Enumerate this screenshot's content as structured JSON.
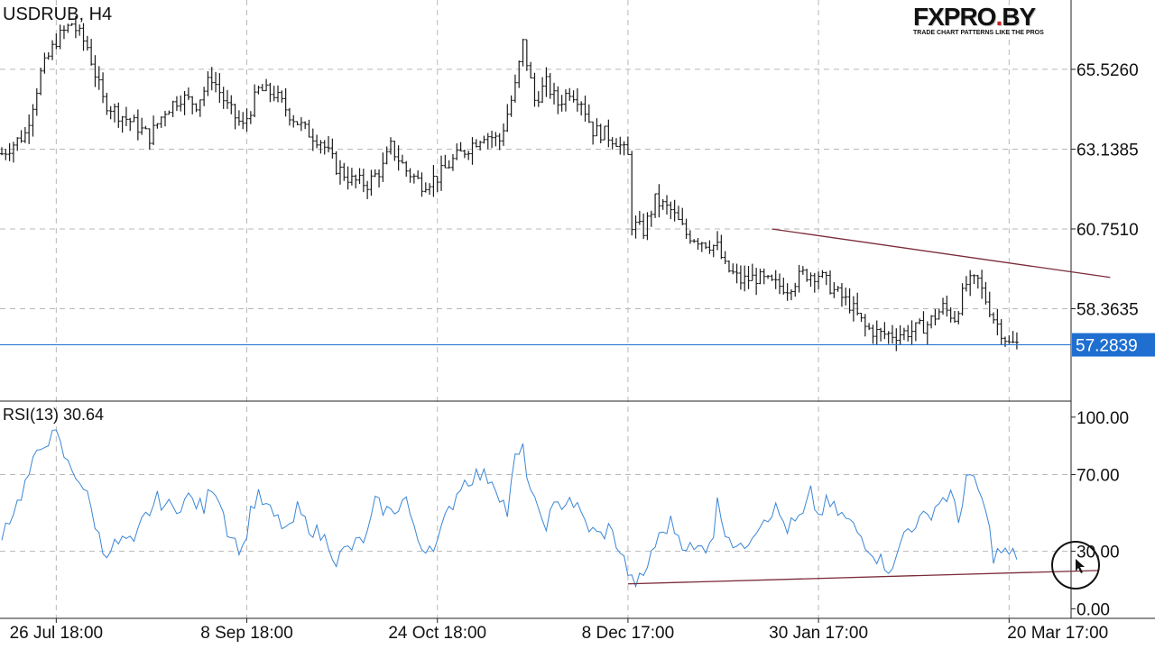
{
  "logo": {
    "main": "FXPRO",
    "dot": ".",
    "suffix": "BY",
    "tagline": "TRADE CHART PATTERNS LIKE THE PROS"
  },
  "chart_data": [
    {
      "type": "ohlc",
      "title": "USDRUB, H4",
      "current_price": "57.2839",
      "colors": {
        "bars": "#1a1a1a",
        "price_line": "#1f6fd1",
        "price_box": "#1f6fd1",
        "trendline": "#7a2a38",
        "grid": "#b8b8b8"
      },
      "y_ticks": [
        "65.5260",
        "63.1385",
        "60.7510",
        "58.3635"
      ],
      "y_tick_values": [
        65.526,
        63.1385,
        60.751,
        58.3635
      ],
      "ylim": [
        55.6,
        67.6
      ],
      "x_ticks": [
        "26 Jul 18:00",
        "8 Sep 18:00",
        "24 Oct 18:00",
        "8 Dec 17:00",
        "30 Jan 17:00",
        "20 Mar 17:00"
      ],
      "x_tick_index": [
        14,
        63,
        112,
        161,
        210,
        259
      ],
      "bar_count": 262,
      "anchors": [
        [
          0,
          63.0
        ],
        [
          6,
          63.6
        ],
        [
          10,
          65.4
        ],
        [
          14,
          66.4
        ],
        [
          18,
          66.9
        ],
        [
          22,
          66.2
        ],
        [
          26,
          64.6
        ],
        [
          30,
          64.2
        ],
        [
          34,
          63.9
        ],
        [
          38,
          63.5
        ],
        [
          42,
          64.3
        ],
        [
          46,
          64.7
        ],
        [
          50,
          64.5
        ],
        [
          54,
          65.3
        ],
        [
          58,
          64.4
        ],
        [
          62,
          63.8
        ],
        [
          66,
          64.9
        ],
        [
          70,
          64.8
        ],
        [
          74,
          64.2
        ],
        [
          78,
          63.7
        ],
        [
          82,
          63.4
        ],
        [
          86,
          62.6
        ],
        [
          90,
          62.2
        ],
        [
          94,
          62.1
        ],
        [
          98,
          62.6
        ],
        [
          100,
          63.2
        ],
        [
          104,
          62.5
        ],
        [
          108,
          62.1
        ],
        [
          112,
          62.3
        ],
        [
          116,
          62.8
        ],
        [
          120,
          63.2
        ],
        [
          124,
          63.6
        ],
        [
          128,
          63.4
        ],
        [
          132,
          65.0
        ],
        [
          134,
          66.3
        ],
        [
          137,
          64.6
        ],
        [
          140,
          65.1
        ],
        [
          143,
          64.5
        ],
        [
          146,
          64.9
        ],
        [
          149,
          64.6
        ],
        [
          152,
          63.7
        ],
        [
          155,
          63.6
        ],
        [
          158,
          63.4
        ],
        [
          161,
          62.9
        ],
        [
          162,
          60.9
        ],
        [
          165,
          60.7
        ],
        [
          168,
          61.6
        ],
        [
          172,
          61.3
        ],
        [
          176,
          60.6
        ],
        [
          180,
          60.4
        ],
        [
          184,
          60.2
        ],
        [
          186,
          59.6
        ],
        [
          190,
          59.2
        ],
        [
          194,
          59.3
        ],
        [
          198,
          59.1
        ],
        [
          202,
          59.0
        ],
        [
          206,
          59.4
        ],
        [
          210,
          59.4
        ],
        [
          214,
          58.9
        ],
        [
          218,
          58.5
        ],
        [
          222,
          57.8
        ],
        [
          226,
          57.6
        ],
        [
          230,
          57.6
        ],
        [
          234,
          57.7
        ],
        [
          238,
          57.9
        ],
        [
          242,
          58.4
        ],
        [
          245,
          58.1
        ],
        [
          248,
          59.1
        ],
        [
          251,
          59.2
        ],
        [
          252,
          58.9
        ],
        [
          255,
          58.1
        ],
        [
          257,
          57.7
        ],
        [
          259,
          57.3
        ]
      ],
      "trendline": [
        [
          198,
          60.75
        ],
        [
          285,
          59.3
        ]
      ]
    },
    {
      "type": "line",
      "title": "RSI(13) 30.64",
      "y_ticks": [
        "100.00",
        "70.00",
        "30.00",
        "0.00"
      ],
      "y_tick_values": [
        100,
        70,
        30,
        0
      ],
      "ylim": [
        -5,
        106
      ],
      "anchors": [
        [
          0,
          40
        ],
        [
          4,
          55
        ],
        [
          8,
          75
        ],
        [
          11,
          88
        ],
        [
          14,
          90
        ],
        [
          17,
          75
        ],
        [
          20,
          68
        ],
        [
          22,
          58
        ],
        [
          24,
          45
        ],
        [
          26,
          30
        ],
        [
          29,
          33
        ],
        [
          32,
          36
        ],
        [
          34,
          32
        ],
        [
          36,
          45
        ],
        [
          40,
          57
        ],
        [
          44,
          52
        ],
        [
          48,
          58
        ],
        [
          52,
          52
        ],
        [
          54,
          65
        ],
        [
          56,
          58
        ],
        [
          58,
          42
        ],
        [
          60,
          35
        ],
        [
          62,
          30
        ],
        [
          64,
          52
        ],
        [
          66,
          58
        ],
        [
          70,
          48
        ],
        [
          74,
          40
        ],
        [
          76,
          52
        ],
        [
          78,
          45
        ],
        [
          82,
          38
        ],
        [
          84,
          35
        ],
        [
          86,
          25
        ],
        [
          88,
          30
        ],
        [
          90,
          32
        ],
        [
          94,
          38
        ],
        [
          96,
          55
        ],
        [
          100,
          50
        ],
        [
          104,
          58
        ],
        [
          106,
          40
        ],
        [
          108,
          32
        ],
        [
          112,
          35
        ],
        [
          114,
          46
        ],
        [
          118,
          65
        ],
        [
          122,
          70
        ],
        [
          126,
          68
        ],
        [
          128,
          60
        ],
        [
          130,
          50
        ],
        [
          132,
          78
        ],
        [
          134,
          82
        ],
        [
          136,
          62
        ],
        [
          138,
          48
        ],
        [
          140,
          45
        ],
        [
          142,
          52
        ],
        [
          146,
          58
        ],
        [
          148,
          52
        ],
        [
          150,
          45
        ],
        [
          152,
          40
        ],
        [
          154,
          38
        ],
        [
          156,
          42
        ],
        [
          158,
          35
        ],
        [
          160,
          25
        ],
        [
          162,
          14
        ],
        [
          165,
          15
        ],
        [
          167,
          30
        ],
        [
          170,
          40
        ],
        [
          172,
          45
        ],
        [
          175,
          35
        ],
        [
          178,
          30
        ],
        [
          181,
          33
        ],
        [
          183,
          40
        ],
        [
          184,
          55
        ],
        [
          186,
          42
        ],
        [
          188,
          35
        ],
        [
          190,
          30
        ],
        [
          193,
          40
        ],
        [
          196,
          48
        ],
        [
          199,
          52
        ],
        [
          202,
          42
        ],
        [
          206,
          48
        ],
        [
          208,
          60
        ],
        [
          210,
          48
        ],
        [
          212,
          55
        ],
        [
          214,
          52
        ],
        [
          218,
          45
        ],
        [
          220,
          40
        ],
        [
          222,
          35
        ],
        [
          224,
          30
        ],
        [
          226,
          25
        ],
        [
          228,
          22
        ],
        [
          230,
          25
        ],
        [
          232,
          40
        ],
        [
          235,
          45
        ],
        [
          238,
          48
        ],
        [
          241,
          56
        ],
        [
          244,
          60
        ],
        [
          246,
          45
        ],
        [
          248,
          70
        ],
        [
          250,
          65
        ],
        [
          252,
          58
        ],
        [
          254,
          40
        ],
        [
          255,
          28
        ],
        [
          257,
          30
        ],
        [
          259,
          28
        ]
      ],
      "trendline": [
        [
          161,
          13
        ],
        [
          282,
          20
        ]
      ]
    }
  ]
}
